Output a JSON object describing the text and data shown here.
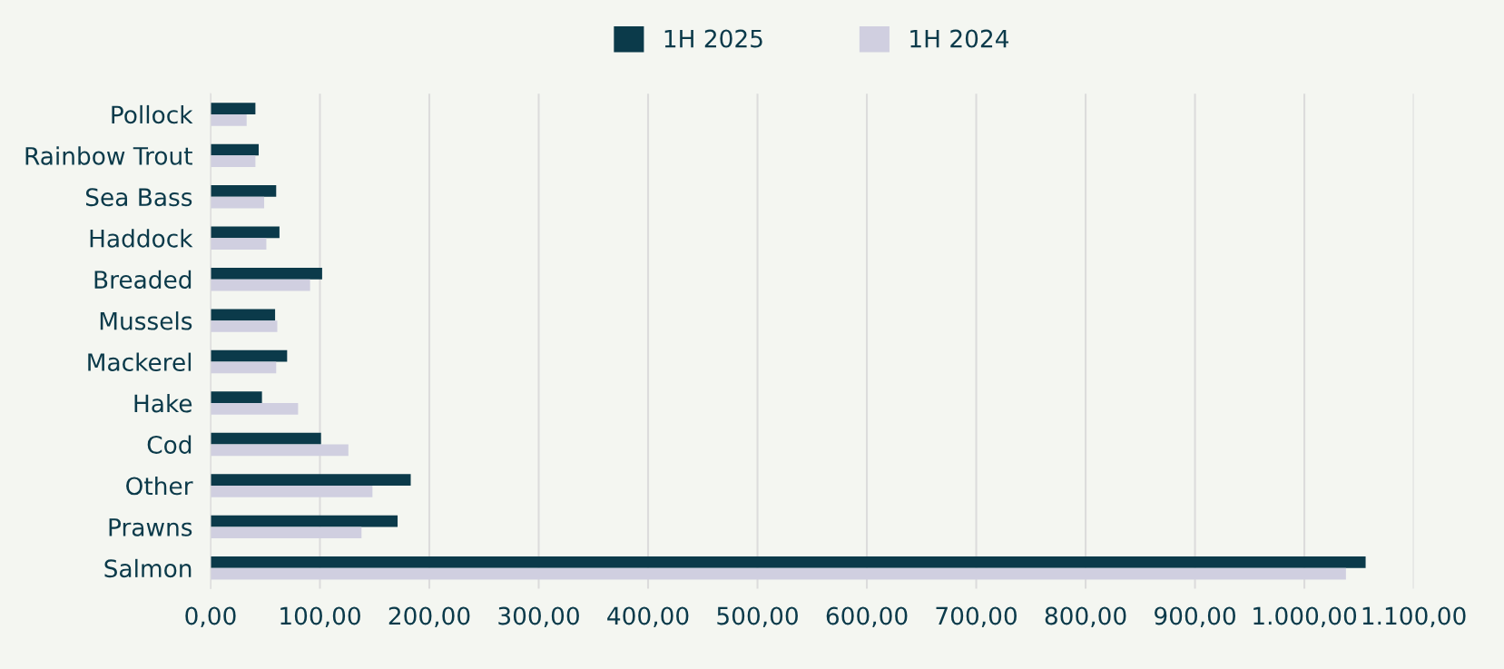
{
  "chart_data": {
    "type": "bar",
    "orientation": "horizontal",
    "categories": [
      "Pollock",
      "Rainbow Trout",
      "Sea Bass",
      "Haddock",
      "Breaded",
      "Mussels",
      "Mackerel",
      "Hake",
      "Cod",
      "Other",
      "Prawns",
      "Salmon"
    ],
    "series": [
      {
        "name": "1H 2025",
        "color": "#0b3a4a",
        "values": [
          41,
          44,
          60,
          63,
          102,
          59,
          70,
          47,
          101,
          183,
          171,
          1056
        ]
      },
      {
        "name": "1H 2024",
        "color": "#d0cfe0",
        "values": [
          33,
          41,
          49,
          51,
          91,
          61,
          60,
          80,
          126,
          148,
          138,
          1038
        ]
      }
    ],
    "xlim": [
      0,
      1100
    ],
    "xticks": [
      {
        "value": 0,
        "label": "0,00"
      },
      {
        "value": 100,
        "label": "100,00"
      },
      {
        "value": 200,
        "label": "200,00"
      },
      {
        "value": 300,
        "label": "300,00"
      },
      {
        "value": 400,
        "label": "400,00"
      },
      {
        "value": 500,
        "label": "500,00"
      },
      {
        "value": 600,
        "label": "600,00"
      },
      {
        "value": 700,
        "label": "700,00"
      },
      {
        "value": 800,
        "label": "800,00"
      },
      {
        "value": 900,
        "label": "900,00"
      },
      {
        "value": 1000,
        "label": "1.000,00"
      },
      {
        "value": 1100,
        "label": "1.100,00"
      }
    ],
    "grid": "x",
    "legend": "top"
  }
}
